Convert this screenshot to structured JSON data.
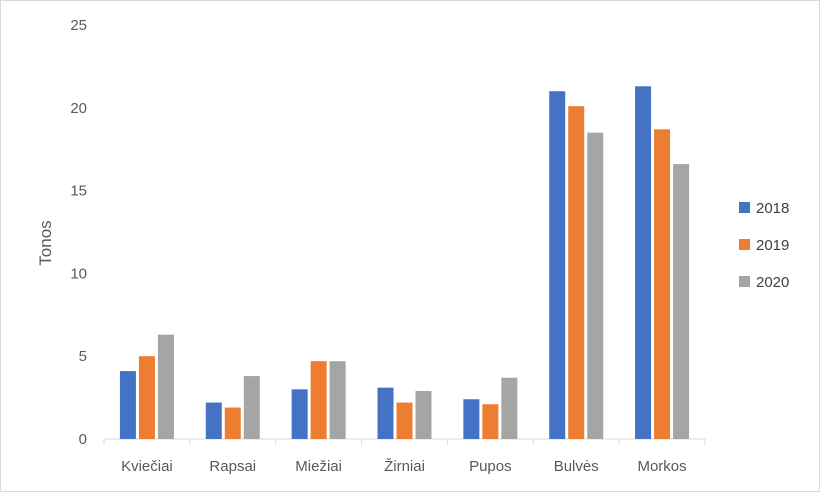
{
  "chart_data": {
    "type": "bar",
    "title": "",
    "xlabel": "",
    "ylabel": "Tonos",
    "ylim": [
      0,
      25
    ],
    "yticks": [
      0,
      5,
      10,
      15,
      20,
      25
    ],
    "grid": false,
    "legend_position": "right",
    "categories": [
      "Kviečiai",
      "Rapsai",
      "Miežiai",
      "Žirniai",
      "Pupos",
      "Bulvės",
      "Morkos"
    ],
    "series": [
      {
        "name": "2018",
        "color": "#4472c4",
        "values": [
          4.1,
          2.2,
          3.0,
          3.1,
          2.4,
          21.0,
          21.3
        ]
      },
      {
        "name": "2019",
        "color": "#ed7d31",
        "values": [
          5.0,
          1.9,
          4.7,
          2.2,
          2.1,
          20.1,
          18.7
        ]
      },
      {
        "name": "2020",
        "color": "#a5a5a5",
        "values": [
          6.3,
          3.8,
          4.7,
          2.9,
          3.7,
          18.5,
          16.6
        ]
      }
    ]
  }
}
